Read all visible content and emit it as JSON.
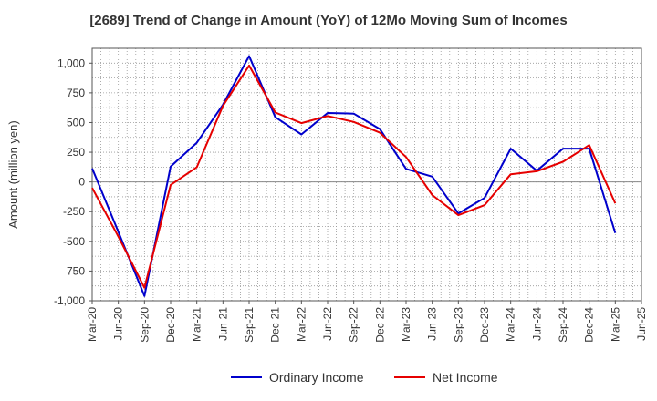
{
  "chart_data": {
    "type": "line",
    "title": "[2689]  Trend of Change in Amount (YoY) of 12Mo Moving Sum of Incomes",
    "ylabel": "Amount (million yen)",
    "xlabel": "",
    "ylim": [
      -1000,
      1125
    ],
    "yticks": [
      -1000,
      -750,
      -500,
      -250,
      0,
      250,
      500,
      750,
      1000
    ],
    "ytick_labels": [
      "-1,000",
      "-750",
      "-500",
      "-250",
      "0",
      "250",
      "500",
      "750",
      "1,000"
    ],
    "categories": [
      "Mar-20",
      "Jun-20",
      "Sep-20",
      "Dec-20",
      "Mar-21",
      "Jun-21",
      "Sep-21",
      "Dec-21",
      "Mar-22",
      "Jun-22",
      "Sep-22",
      "Dec-22",
      "Mar-23",
      "Jun-23",
      "Sep-23",
      "Dec-23",
      "Mar-24",
      "Jun-24",
      "Sep-24",
      "Dec-24",
      "Mar-25",
      "Jun-25"
    ],
    "grid": true,
    "legend_position": "bottom",
    "series": [
      {
        "name": "Ordinary Income",
        "color": "#0000cc",
        "values": [
          115,
          -420,
          -960,
          130,
          330,
          650,
          1060,
          545,
          400,
          580,
          575,
          445,
          110,
          45,
          -265,
          -135,
          280,
          95,
          280,
          280,
          -430,
          null
        ]
      },
      {
        "name": "Net Income",
        "color": "#e60000",
        "values": [
          -50,
          -460,
          -890,
          -25,
          125,
          640,
          980,
          585,
          495,
          555,
          505,
          415,
          210,
          -110,
          -280,
          -195,
          65,
          90,
          170,
          310,
          -180,
          null
        ]
      }
    ]
  }
}
